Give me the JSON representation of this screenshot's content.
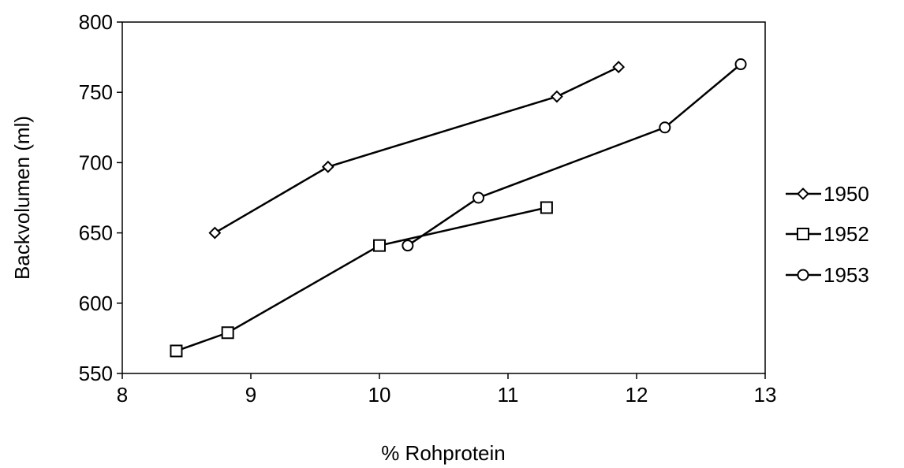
{
  "chart_data": {
    "type": "line",
    "xlabel": "% Rohprotein",
    "ylabel": "Backvolumen (ml)",
    "xlim": [
      8,
      13
    ],
    "ylim": [
      550,
      800
    ],
    "xticks": [
      8,
      9,
      10,
      11,
      12,
      13
    ],
    "yticks": [
      550,
      600,
      650,
      700,
      750,
      800
    ],
    "xtick_labels": [
      "8",
      "9",
      "10",
      "11",
      "12",
      "13"
    ],
    "ytick_labels": [
      "550",
      "600",
      "650",
      "700",
      "750",
      "800"
    ],
    "grid": false,
    "legend_position": "right",
    "series": [
      {
        "name": "1950",
        "marker": "diamond",
        "x": [
          8.72,
          9.6,
          11.38,
          11.86
        ],
        "y": [
          650,
          697,
          747,
          768
        ]
      },
      {
        "name": "1952",
        "marker": "square",
        "x": [
          8.42,
          8.82,
          10.0,
          11.3
        ],
        "y": [
          566,
          579,
          641,
          668
        ]
      },
      {
        "name": "1953",
        "marker": "circle",
        "x": [
          10.22,
          10.77,
          12.22,
          12.81
        ],
        "y": [
          641,
          675,
          725,
          770
        ]
      }
    ]
  }
}
